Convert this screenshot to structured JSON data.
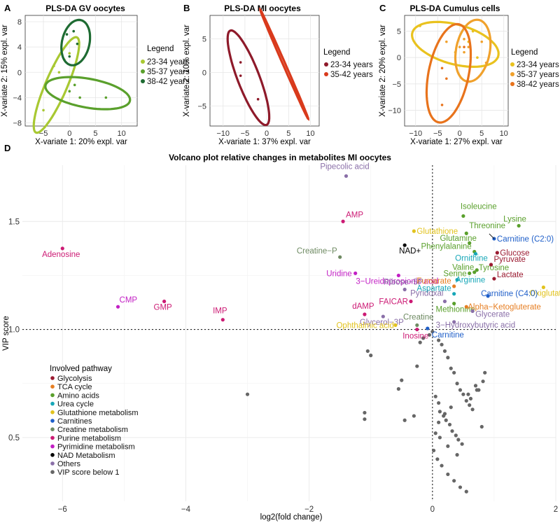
{
  "chart_data": [
    {
      "panel_label": "A",
      "type": "scatter",
      "title": "PLS-DA GV oocytes",
      "xlabel": "X-variate 1: 20% expl. var",
      "ylabel": "X-variate 2: 15% expl. var",
      "xlim": [
        -8.5,
        13
      ],
      "ylim": [
        -8.5,
        9
      ],
      "xticks": [
        -5,
        0,
        5,
        10
      ],
      "yticks": [
        -8,
        -4,
        0,
        4,
        8
      ],
      "legend_title": "Legend",
      "series": [
        {
          "name": "23-34 years",
          "color": "#a8c832",
          "points": [
            [
              -5,
              -6
            ],
            [
              -3,
              1
            ],
            [
              -2,
              0
            ],
            [
              0,
              3
            ],
            [
              -1,
              2
            ]
          ],
          "ellipse": {
            "cx": -2.5,
            "cy": -2,
            "rx": 8.5,
            "ry": 2.0,
            "angle": 62
          }
        },
        {
          "name": "35-37 years",
          "color": "#5aa02c",
          "points": [
            [
              1,
              -2
            ],
            [
              2,
              -4
            ],
            [
              7,
              -4
            ],
            [
              0,
              -3
            ]
          ],
          "ellipse": {
            "cx": 3.5,
            "cy": -3.3,
            "rx": 8.2,
            "ry": 2.3,
            "angle": -8
          }
        },
        {
          "name": "38-42 years",
          "color": "#1e6b32",
          "points": [
            [
              -0.5,
              6
            ],
            [
              1.5,
              4.5
            ],
            [
              0,
              2.5
            ],
            [
              0.8,
              6.5
            ]
          ],
          "ellipse": {
            "cx": 1.2,
            "cy": 4.7,
            "rx": 3.7,
            "ry": 2.6,
            "angle": 70
          }
        }
      ]
    },
    {
      "panel_label": "B",
      "type": "scatter",
      "title": "PLS-DA MI oocytes",
      "xlabel": "X-variate 1: 37% expl. var",
      "ylabel": "X-variate 2: 10% expl. var",
      "xlim": [
        -13,
        12
      ],
      "ylim": [
        -8,
        8.5
      ],
      "xticks": [
        -10,
        -5,
        0,
        5,
        10
      ],
      "yticks": [
        -5,
        0,
        5
      ],
      "legend_title": "Legend",
      "series": [
        {
          "name": "23-34 years",
          "color": "#8e1a2a",
          "points": [
            [
              -6,
              1.5
            ],
            [
              -6,
              -0.5
            ],
            [
              -2,
              -4
            ]
          ],
          "ellipse": {
            "cx": -4.2,
            "cy": -0.8,
            "rx": 8.2,
            "ry": 2.3,
            "angle": -58
          }
        },
        {
          "name": "35-42 years",
          "color": "#d93a1c",
          "points": [],
          "ellipse": {
            "cx": 4.0,
            "cy": 1.2,
            "rx": 9.8,
            "ry": 0.25,
            "angle": -56
          }
        }
      ]
    },
    {
      "panel_label": "C",
      "type": "scatter",
      "title": "PLS-DA Cumulus cells",
      "xlabel": "X-variate 1: 27% expl. var",
      "ylabel": "X-variate 2: 20% expl. var",
      "xlim": [
        -12.5,
        11
      ],
      "ylim": [
        -13,
        8
      ],
      "xticks": [
        -10,
        -5,
        0,
        5,
        10
      ],
      "yticks": [
        -10,
        -5,
        0,
        5
      ],
      "legend_title": "Legend",
      "series": [
        {
          "name": "23-34 years",
          "color": "#e9c21e",
          "points": [
            [
              -9,
              6
            ],
            [
              3,
              5
            ],
            [
              4,
              0
            ],
            [
              2,
              3
            ],
            [
              -1,
              1
            ]
          ],
          "ellipse": {
            "cx": -1,
            "cy": 2.5,
            "rx": 10,
            "ry": 3.8,
            "angle": -12
          }
        },
        {
          "name": "35-37 years",
          "color": "#f0a12c",
          "points": [
            [
              -3,
              3
            ],
            [
              0,
              2
            ],
            [
              1,
              1
            ],
            [
              2,
              2
            ],
            [
              5,
              3
            ],
            [
              6,
              -1
            ],
            [
              1,
              3.5
            ]
          ],
          "ellipse": {
            "cx": 3,
            "cy": 1.3,
            "rx": 6.0,
            "ry": 3.8,
            "angle": 75
          }
        },
        {
          "name": "38-42 years",
          "color": "#e8731c",
          "points": [
            [
              -4,
              -2
            ],
            [
              -3,
              -4
            ],
            [
              -4,
              -9
            ],
            [
              1,
              2
            ]
          ],
          "ellipse": {
            "cx": -2.5,
            "cy": -3,
            "rx": 9.6,
            "ry": 4.5,
            "angle": 75
          }
        }
      ]
    },
    {
      "panel_label": "D",
      "type": "scatter",
      "title": "Volcano plot relative changes in metabolites MI oocytes",
      "xlabel": "log2(fold change)",
      "ylabel": "VIP score",
      "xlim": [
        -6.65,
        2.0
      ],
      "ylim": [
        0.205,
        1.76
      ],
      "xticks": [
        -6,
        -4,
        -2,
        0,
        2
      ],
      "yticks": [
        0.5,
        1.0,
        1.5
      ],
      "threshold_lines": {
        "vip": 1.0,
        "log2fc": 0
      },
      "legend_title": "Involved pathway",
      "pathways": [
        {
          "key": "glyc",
          "name": "Glycolysis",
          "color": "#9b1b31"
        },
        {
          "key": "tca",
          "name": "TCA cycle",
          "color": "#e67e22"
        },
        {
          "key": "amino",
          "name": "Amino acids",
          "color": "#5aa02c"
        },
        {
          "key": "urea",
          "name": "Urea cycle",
          "color": "#17a7b8"
        },
        {
          "key": "gluta",
          "name": "Glutathione metabolism",
          "color": "#e2c31e"
        },
        {
          "key": "carn",
          "name": "Carnitines",
          "color": "#1f5fc9"
        },
        {
          "key": "creat",
          "name": "Creatine metabolism",
          "color": "#6e8a62"
        },
        {
          "key": "purine",
          "name": "Purine metabolism",
          "color": "#cc1a74"
        },
        {
          "key": "pyrim",
          "name": "Pyrimidine metabolism",
          "color": "#c21fc4"
        },
        {
          "key": "nad",
          "name": "NAD Metabolism",
          "color": "#000000"
        },
        {
          "key": "other",
          "name": "Others",
          "color": "#8a6fa8"
        },
        {
          "key": "below",
          "name": "VIP score below 1",
          "color": "#666666"
        }
      ],
      "points": [
        {
          "label": "Pipecolic acid",
          "x": -1.4,
          "y": 1.71,
          "path": "other"
        },
        {
          "label": "AMP",
          "x": -1.45,
          "y": 1.5,
          "path": "purine"
        },
        {
          "label": "Adenosine",
          "x": -6.0,
          "y": 1.375,
          "path": "purine"
        },
        {
          "label": "Creatine-P",
          "x": -1.5,
          "y": 1.335,
          "path": "creat"
        },
        {
          "label": "Uridine",
          "x": -1.25,
          "y": 1.26,
          "path": "pyrim"
        },
        {
          "label": "3-Ureidopropionic acid",
          "x": -0.55,
          "y": 1.25,
          "path": "pyrim"
        },
        {
          "label": "Ribose-5P",
          "x": -0.45,
          "y": 1.185,
          "path": "other"
        },
        {
          "label": "FAICAR",
          "x": -0.35,
          "y": 1.13,
          "path": "purine"
        },
        {
          "label": "dAMP",
          "x": -1.1,
          "y": 1.07,
          "path": "purine"
        },
        {
          "label": "CMP",
          "x": -5.1,
          "y": 1.105,
          "path": "pyrim"
        },
        {
          "label": "GMP",
          "x": -4.35,
          "y": 1.13,
          "path": "purine"
        },
        {
          "label": "IMP",
          "x": -3.4,
          "y": 1.045,
          "path": "purine"
        },
        {
          "label": "Glycerol-3P",
          "x": -0.8,
          "y": 1.06,
          "path": "other"
        },
        {
          "label": "Ophthalmic acid",
          "x": -0.6,
          "y": 1.02,
          "path": "gluta"
        },
        {
          "label": "Creatine",
          "x": -0.25,
          "y": 1.02,
          "path": "creat"
        },
        {
          "label": "Inosine",
          "x": -0.25,
          "y": 1.0,
          "path": "purine"
        },
        {
          "label": "Carnitine",
          "x": -0.08,
          "y": 1.005,
          "path": "carn"
        },
        {
          "label": "Pyridoxal",
          "x": 0.2,
          "y": 1.13,
          "path": "other"
        },
        {
          "label": "Methionine",
          "x": 0.35,
          "y": 1.12,
          "path": "amino"
        },
        {
          "label": "Aspartate",
          "x": 0.35,
          "y": 1.165,
          "path": "urea"
        },
        {
          "label": "Fumarate",
          "x": 0.35,
          "y": 1.2,
          "path": "tca"
        },
        {
          "label": "Arginine",
          "x": 0.4,
          "y": 1.23,
          "path": "urea"
        },
        {
          "label": "Glutathione",
          "x": -0.3,
          "y": 1.455,
          "path": "gluta"
        },
        {
          "label": "NAD+",
          "x": -0.45,
          "y": 1.39,
          "path": "nad"
        },
        {
          "label": "Isoleucine",
          "x": 0.5,
          "y": 1.525,
          "path": "amino"
        },
        {
          "label": "Threonine",
          "x": 0.55,
          "y": 1.445,
          "path": "amino"
        },
        {
          "label": "Glutamine",
          "x": 0.6,
          "y": 1.4,
          "path": "amino"
        },
        {
          "label": "Phenylalanine",
          "x": 0.68,
          "y": 1.36,
          "path": "amino"
        },
        {
          "label": "Ornithine",
          "x": 0.7,
          "y": 1.35,
          "path": "urea"
        },
        {
          "label": "Valine",
          "x": 0.72,
          "y": 1.275,
          "path": "amino"
        },
        {
          "label": "Serine",
          "x": 0.6,
          "y": 1.26,
          "path": "amino"
        },
        {
          "label": "Tyrosine",
          "x": 0.68,
          "y": 1.265,
          "path": "amino"
        },
        {
          "label": "Lysine",
          "x": 1.4,
          "y": 1.48,
          "path": "amino"
        },
        {
          "label": "Carnitine (C2:0)",
          "x": 1.0,
          "y": 1.42,
          "path": "carn"
        },
        {
          "label": "Glucose",
          "x": 1.05,
          "y": 1.355,
          "path": "glyc"
        },
        {
          "label": "Pyruvate",
          "x": 0.95,
          "y": 1.3,
          "path": "glyc"
        },
        {
          "label": "Lactate",
          "x": 1.0,
          "y": 1.235,
          "path": "glyc"
        },
        {
          "label": "Oxiglutathione",
          "x": 1.8,
          "y": 1.195,
          "path": "gluta"
        },
        {
          "label": "Carnitine (C4:0)",
          "x": 0.9,
          "y": 1.155,
          "path": "carn"
        },
        {
          "label": "Alpha-Ketogluterate",
          "x": 0.55,
          "y": 1.105,
          "path": "tca"
        },
        {
          "label": "Glycerate",
          "x": 0.65,
          "y": 1.085,
          "path": "other"
        },
        {
          "label": "3-Hydroxybutyric acid",
          "x": 0.35,
          "y": 1.035,
          "path": "other"
        }
      ],
      "below_threshold_x": [
        -3.0,
        -1.1,
        -1.1,
        -1.0,
        -1.05,
        -0.5,
        -0.55,
        -0.45,
        -0.3,
        -0.25,
        -0.2,
        -0.15,
        -0.05,
        0.0,
        0.1,
        0.15,
        0.2,
        0.25,
        0.3,
        0.35,
        0.4,
        0.45,
        0.5,
        0.55,
        0.6,
        0.65,
        0.7,
        0.75,
        0.8,
        0.85,
        0.05,
        0.1,
        0.12,
        0.18,
        0.22,
        0.28,
        0.32,
        0.38,
        0.42,
        0.48,
        0.58,
        0.62,
        0.72,
        0.82,
        0.02,
        0.08,
        0.15,
        0.25,
        0.35,
        0.45,
        0.55,
        0.2,
        0.3,
        0.1,
        0.05,
        0.12,
        0.25,
        0.4
      ],
      "below_threshold_y": [
        0.7,
        0.615,
        0.585,
        0.88,
        0.9,
        0.765,
        0.725,
        0.58,
        0.6,
        0.83,
        0.94,
        0.96,
        0.975,
        0.99,
        0.95,
        0.93,
        0.9,
        0.87,
        0.82,
        0.8,
        0.75,
        0.72,
        0.7,
        0.67,
        0.65,
        0.63,
        0.74,
        0.72,
        0.55,
        0.8,
        0.69,
        0.66,
        0.62,
        0.6,
        0.58,
        0.56,
        0.53,
        0.51,
        0.49,
        0.47,
        0.7,
        0.68,
        0.72,
        0.76,
        0.44,
        0.4,
        0.37,
        0.33,
        0.3,
        0.27,
        0.25,
        0.61,
        0.64,
        0.57,
        0.52,
        0.5,
        0.46,
        0.42
      ]
    }
  ]
}
